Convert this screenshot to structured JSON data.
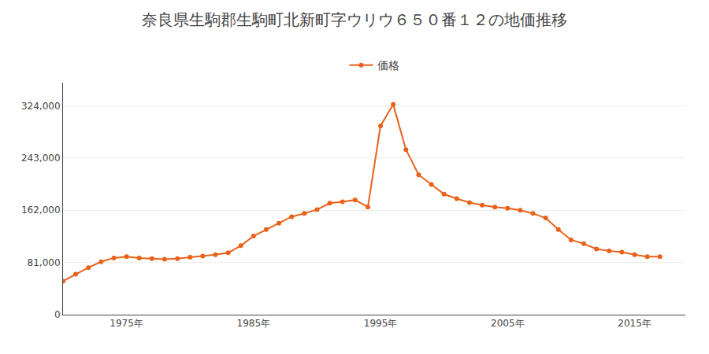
{
  "chart_data": {
    "type": "line",
    "title": "奈良県生駒郡生駒町北新町字ウリウ６５０番１２の地価推移",
    "x": [
      1970,
      1971,
      1972,
      1973,
      1974,
      1975,
      1976,
      1977,
      1978,
      1979,
      1980,
      1981,
      1982,
      1983,
      1984,
      1985,
      1986,
      1987,
      1988,
      1989,
      1990,
      1991,
      1992,
      1993,
      1994,
      1995,
      1996,
      1997,
      1998,
      1999,
      2000,
      2001,
      2002,
      2003,
      2004,
      2005,
      2006,
      2007,
      2008,
      2009,
      2010,
      2011,
      2012,
      2013,
      2014,
      2015,
      2016,
      2017
    ],
    "series": [
      {
        "name": "価格",
        "color": "#E8621A",
        "marker": "circle",
        "values": [
          52000,
          63000,
          73000,
          82000,
          88000,
          90000,
          88000,
          87000,
          86000,
          87000,
          89000,
          91000,
          93000,
          96000,
          107000,
          122000,
          132000,
          142000,
          152000,
          157000,
          163000,
          173000,
          175000,
          178000,
          167000,
          293000,
          326000,
          256000,
          217000,
          202000,
          187000,
          180000,
          174000,
          170000,
          167000,
          165000,
          162000,
          157000,
          150000,
          132000,
          116000,
          110000,
          102000,
          99000,
          97000,
          93000,
          90000,
          90000
        ]
      }
    ],
    "xlim": [
      1970,
      2019
    ],
    "xticks": [
      {
        "value": 1975,
        "label": "1975年"
      },
      {
        "value": 1985,
        "label": "1985年"
      },
      {
        "value": 1995,
        "label": "1995年"
      },
      {
        "value": 2005,
        "label": "2005年"
      },
      {
        "value": 2015,
        "label": "2015年"
      }
    ],
    "ylim": [
      0,
      360000
    ],
    "yticks": [
      0,
      {
        "value": 81000,
        "label": "81,000"
      },
      {
        "value": 162000,
        "label": "162,000"
      },
      {
        "value": 243000,
        "label": "243,000"
      },
      {
        "value": 324000,
        "label": "324,000"
      }
    ],
    "grid": "y",
    "legend": "top"
  }
}
